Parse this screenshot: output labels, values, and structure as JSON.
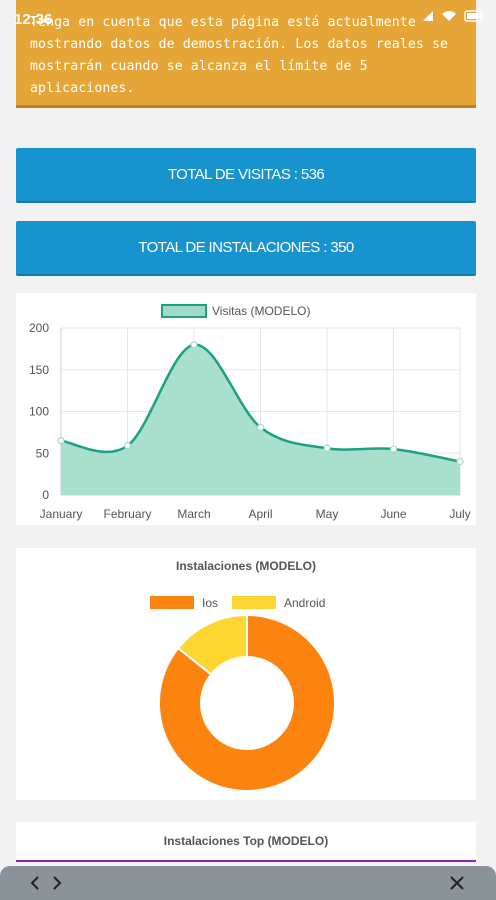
{
  "status": {
    "time": "12:36"
  },
  "notice": {
    "text": "Tenga en cuenta que esta página está actualmente mostrando datos de demostración. Los datos reales se mostrarán cuando se alcanza el límite de 5 aplicaciones."
  },
  "stats": {
    "visits_label": "TOTAL DE VISITAS : 536",
    "installs_label": "TOTAL DE INSTALACIONES : 350"
  },
  "colors": {
    "notice": "#e6a537",
    "stat_button": "#1794cd",
    "line": "#1aa283",
    "line_fill": "#9fdbc8",
    "ios": "#fb8410",
    "android": "#fdd631"
  },
  "chart_data": [
    {
      "type": "area",
      "categories": [
        "January",
        "February",
        "March",
        "April",
        "May",
        "June",
        "July"
      ],
      "series": [
        {
          "name": "Visitas (MODELO)",
          "values": [
            65,
            59,
            180,
            81,
            56,
            55,
            40
          ]
        }
      ],
      "ylim": [
        0,
        200
      ],
      "yticks": [
        0,
        50,
        100,
        150,
        200
      ],
      "grid": true,
      "legend": "top"
    },
    {
      "type": "pie",
      "title": "Instalaciones (MODELO)",
      "labels": [
        "Ios",
        "Android"
      ],
      "values": [
        300,
        50
      ],
      "legend": "top",
      "donut": true
    }
  ],
  "top_card": {
    "title": "Instalaciones Top (MODELO)"
  },
  "icons": {
    "wifi": "wifi-icon",
    "battery": "battery-icon",
    "back": "chevron-left-icon",
    "forward": "chevron-right-icon",
    "close": "close-icon"
  }
}
